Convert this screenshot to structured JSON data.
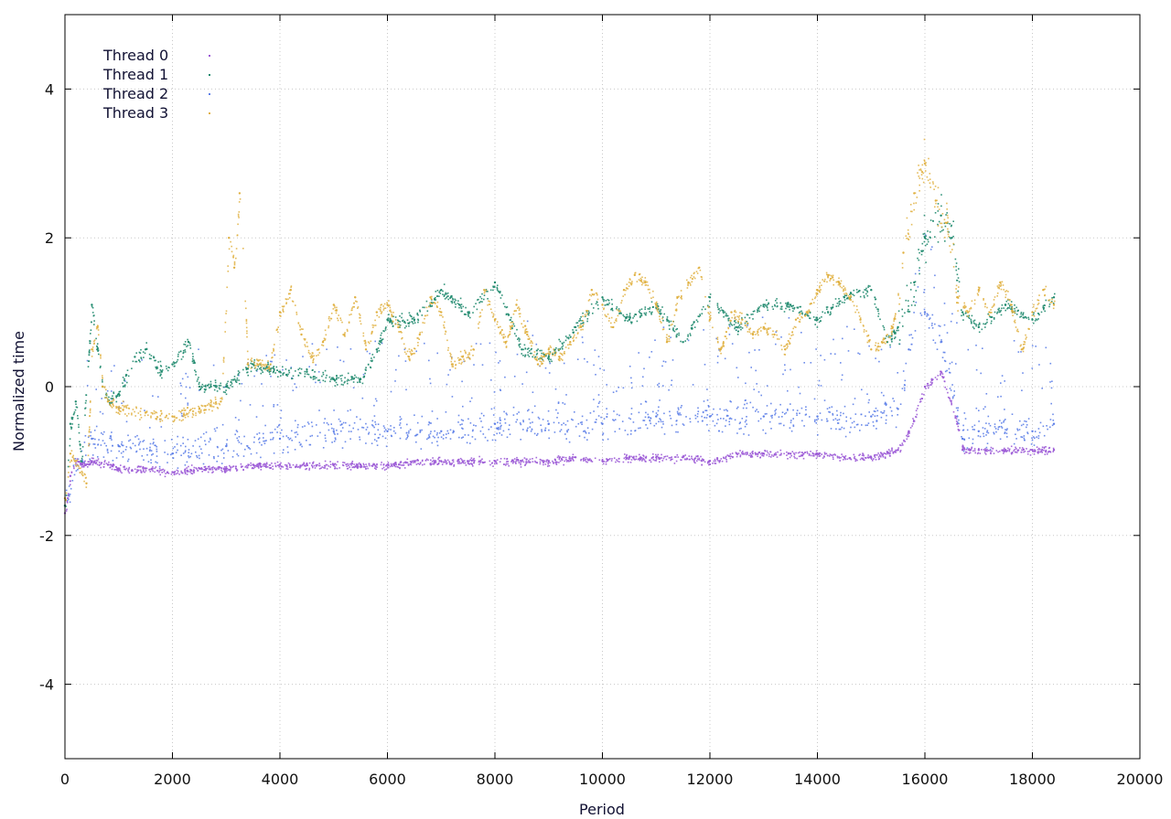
{
  "chart_data": {
    "type": "scatter",
    "xlabel": "Period",
    "ylabel": "Normalized time",
    "xlim": [
      0,
      20000
    ],
    "ylim": [
      -5,
      5
    ],
    "xticks": [
      0,
      2000,
      4000,
      6000,
      8000,
      10000,
      12000,
      14000,
      16000,
      18000,
      20000
    ],
    "yticks": [
      -4,
      -2,
      0,
      2,
      4
    ],
    "grid": true,
    "legend": "top-left",
    "series": [
      {
        "name": "Thread 0",
        "color": "#9B59D6",
        "x": [
          0,
          100,
          200,
          300,
          500,
          800,
          1000,
          1500,
          2000,
          2500,
          3000,
          3500,
          4000,
          4500,
          5000,
          5500,
          6000,
          6500,
          7000,
          7500,
          8000,
          8500,
          9000,
          9500,
          10000,
          10500,
          11000,
          11500,
          12000,
          12500,
          13000,
          13500,
          14000,
          14500,
          15000,
          15500,
          15700,
          16000,
          16300,
          16600,
          16700,
          17000,
          17500,
          18000,
          18400
        ],
        "y": [
          -1.7,
          -1.2,
          -1.0,
          -1.05,
          -1.0,
          -1.05,
          -1.1,
          -1.1,
          -1.15,
          -1.1,
          -1.1,
          -1.05,
          -1.05,
          -1.05,
          -1.05,
          -1.05,
          -1.05,
          -1.0,
          -1.0,
          -1.0,
          -1.0,
          -1.0,
          -1.0,
          -0.95,
          -1.0,
          -0.95,
          -0.95,
          -0.95,
          -1.0,
          -0.9,
          -0.9,
          -0.9,
          -0.9,
          -0.95,
          -0.95,
          -0.85,
          -0.6,
          0.0,
          0.2,
          -0.5,
          -0.85,
          -0.85,
          -0.85,
          -0.85,
          -0.85
        ]
      },
      {
        "name": "Thread 1",
        "color": "#1F8A6E",
        "x": [
          0,
          100,
          200,
          300,
          500,
          600,
          700,
          800,
          1000,
          1300,
          1500,
          1800,
          2000,
          2300,
          2500,
          3000,
          3500,
          4000,
          4500,
          5000,
          5500,
          5800,
          6000,
          6500,
          7000,
          7500,
          8000,
          8500,
          9000,
          9500,
          10000,
          10500,
          11000,
          11500,
          12000,
          12500,
          13000,
          13500,
          14000,
          14500,
          15000,
          15300,
          15500,
          15800,
          16000,
          16300,
          16500,
          16700,
          17000,
          17500,
          18000,
          18400
        ],
        "y": [
          -1.6,
          -0.5,
          -0.2,
          -1.0,
          1.1,
          0.5,
          0.0,
          -0.2,
          -0.1,
          0.4,
          0.5,
          0.2,
          0.3,
          0.6,
          0.0,
          0.0,
          0.3,
          0.2,
          0.2,
          0.1,
          0.1,
          0.5,
          0.9,
          0.9,
          1.3,
          1.0,
          1.4,
          0.5,
          0.4,
          0.8,
          1.2,
          0.9,
          1.1,
          0.6,
          1.2,
          0.8,
          1.1,
          1.1,
          0.9,
          1.2,
          1.3,
          0.6,
          0.8,
          1.4,
          2.0,
          2.3,
          2.0,
          1.0,
          0.8,
          1.1,
          0.9,
          1.2
        ]
      },
      {
        "name": "Thread 2",
        "color": "#5D7FE8",
        "x": [
          0,
          200,
          500,
          1000,
          2000,
          3000,
          4000,
          5000,
          6000,
          7000,
          8000,
          9000,
          10000,
          11000,
          12000,
          13000,
          14000,
          15000,
          15500,
          15700,
          16000,
          16300,
          16600,
          16700,
          17000,
          18000,
          18400
        ],
        "y": [
          -1.6,
          -1.0,
          -0.7,
          -0.8,
          -0.9,
          -0.8,
          -0.7,
          -0.6,
          -0.6,
          -0.6,
          -0.5,
          -0.5,
          -0.5,
          -0.4,
          -0.4,
          -0.4,
          -0.4,
          -0.4,
          -0.3,
          0.5,
          1.0,
          0.6,
          -0.4,
          -0.7,
          -0.6,
          -0.6,
          -0.5
        ]
      },
      {
        "name": "Thread 3",
        "color": "#E0B040",
        "x": [
          0,
          100,
          200,
          400,
          500,
          600,
          700,
          800,
          1000,
          1500,
          2000,
          2500,
          2900,
          3050,
          3150,
          3250,
          3400,
          3600,
          3800,
          4000,
          4200,
          4400,
          4600,
          4800,
          5000,
          5200,
          5400,
          5600,
          5800,
          6000,
          6200,
          6400,
          6600,
          6800,
          7000,
          7200,
          7400,
          7600,
          7800,
          8000,
          8200,
          8400,
          8600,
          8800,
          9000,
          9200,
          9400,
          9600,
          9800,
          10000,
          10200,
          10400,
          10600,
          10800,
          11000,
          11200,
          11400,
          11600,
          11800,
          12000,
          12200,
          12400,
          12600,
          12800,
          13000,
          13200,
          13400,
          13600,
          13800,
          14000,
          14200,
          14400,
          14600,
          14800,
          15000,
          15200,
          15400,
          15600,
          15800,
          16000,
          16200,
          16400,
          16600,
          16800,
          17000,
          17200,
          17400,
          17600,
          17800,
          18000,
          18200,
          18400
        ],
        "y": [
          -1.5,
          -0.9,
          -1.0,
          -1.3,
          0.5,
          0.8,
          0.0,
          -0.2,
          -0.3,
          -0.35,
          -0.4,
          -0.3,
          -0.2,
          2.0,
          1.6,
          2.6,
          0.3,
          0.35,
          0.25,
          1.0,
          1.3,
          0.7,
          0.4,
          0.6,
          1.1,
          0.7,
          1.2,
          0.5,
          1.0,
          1.1,
          0.8,
          0.4,
          0.7,
          1.2,
          1.0,
          0.3,
          0.4,
          0.5,
          1.3,
          0.9,
          0.6,
          1.1,
          0.7,
          0.3,
          0.5,
          0.4,
          0.6,
          0.8,
          1.3,
          1.1,
          0.8,
          1.3,
          1.5,
          1.4,
          1.1,
          0.6,
          1.2,
          1.4,
          1.6,
          0.9,
          0.5,
          1.0,
          0.9,
          0.7,
          0.8,
          0.7,
          0.5,
          0.9,
          1.0,
          1.3,
          1.5,
          1.4,
          1.2,
          0.9,
          0.5,
          0.6,
          0.8,
          1.8,
          2.6,
          3.0,
          2.5,
          2.2,
          1.2,
          1.0,
          1.3,
          1.0,
          1.4,
          1.1,
          0.5,
          1.0,
          1.3,
          1.1
        ]
      }
    ]
  }
}
